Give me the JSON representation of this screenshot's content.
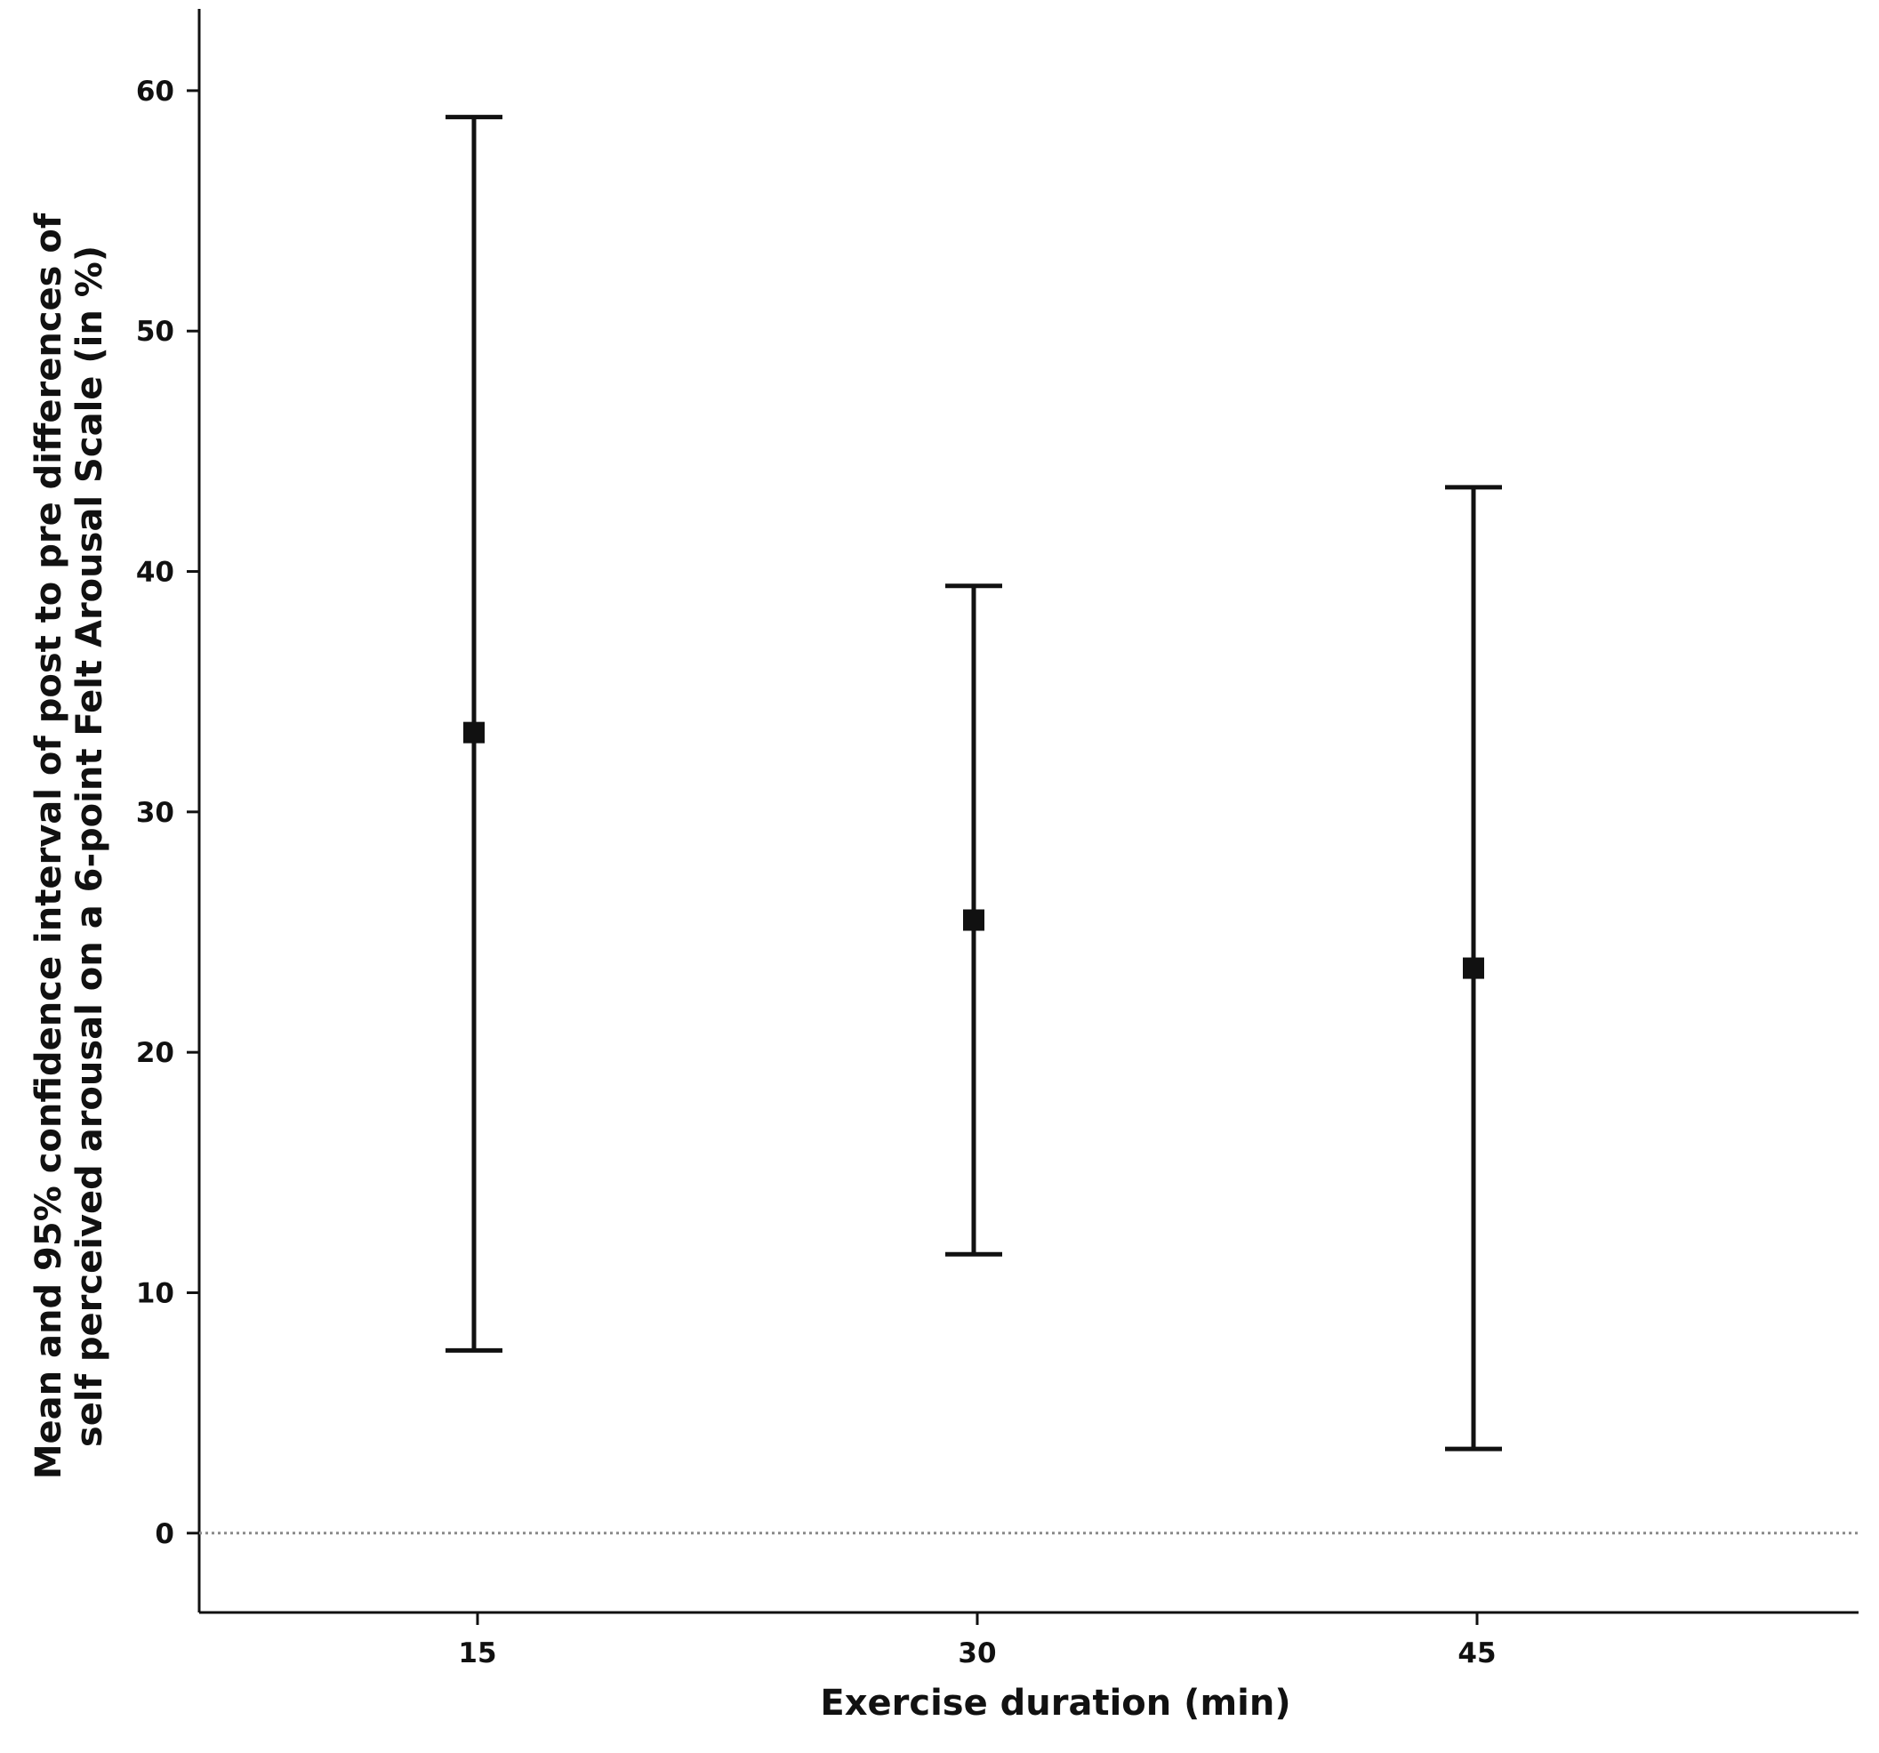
{
  "chart_data": {
    "type": "errorbar",
    "xlabel": "Exercise duration (min)",
    "ylabel_line1": "Mean and 95% confidence interval of post to pre differences of",
    "ylabel_line2": "self perceived arousal on a 6-point Felt Arousal Scale (in %)",
    "categories": [
      "15",
      "30",
      "45"
    ],
    "means": [
      33.3,
      25.5,
      23.5
    ],
    "ci_lower": [
      7.6,
      11.6,
      3.5
    ],
    "ci_upper": [
      58.9,
      39.4,
      43.5
    ],
    "ylim": [
      -3.3,
      63.4
    ],
    "yticks": [
      0,
      10,
      20,
      30,
      40,
      50,
      60
    ],
    "ytick_labels": [
      "0",
      "10",
      "20",
      "30",
      "40",
      "50",
      "60"
    ],
    "reference_line": {
      "y": 0,
      "style": "dotted"
    },
    "grid": false,
    "colors": {
      "marks": "#111111",
      "reference_line": "#8a8a8a"
    }
  }
}
